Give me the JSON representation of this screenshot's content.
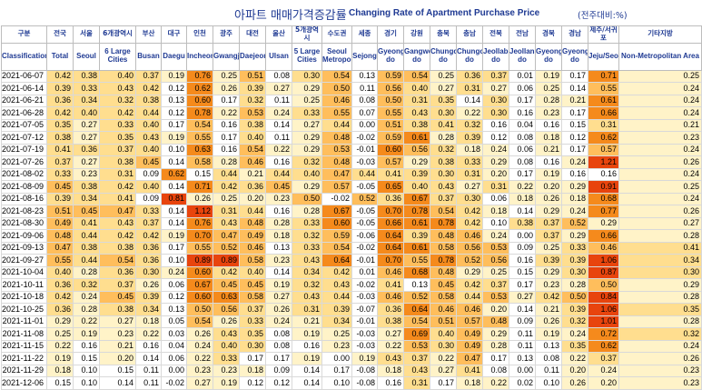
{
  "header": {
    "title_ko": "아파트 매매가격증감률",
    "title_en": "Changing Rate of Apartment Purchase Price",
    "unit": "(전주대비:%)"
  },
  "columns": [
    {
      "ko": "구분",
      "en": "Classification"
    },
    {
      "ko": "전국",
      "en": "Total"
    },
    {
      "ko": "서울",
      "en": "Seoul"
    },
    {
      "ko": "6개광역시",
      "en": "6 Large Cities"
    },
    {
      "ko": "부산",
      "en": "Busan"
    },
    {
      "ko": "대구",
      "en": "Daegu"
    },
    {
      "ko": "인천",
      "en": "Incheon"
    },
    {
      "ko": "광주",
      "en": "Gwangju"
    },
    {
      "ko": "대전",
      "en": "Daejeon"
    },
    {
      "ko": "울산",
      "en": "Ulsan"
    },
    {
      "ko": "5개광역시",
      "en": "5 Large Cities"
    },
    {
      "ko": "수도권",
      "en": "Seoul Metropolitan"
    },
    {
      "ko": "세종",
      "en": "Sejong"
    },
    {
      "ko": "경기",
      "en": "Gyeonggi-do"
    },
    {
      "ko": "강원",
      "en": "Gangwon-do"
    },
    {
      "ko": "충북",
      "en": "Chungcheongbuk-do"
    },
    {
      "ko": "충남",
      "en": "Chungcheongnam-do"
    },
    {
      "ko": "전북",
      "en": "Jeollabuk-do"
    },
    {
      "ko": "전남",
      "en": "Jeollanam-do"
    },
    {
      "ko": "경북",
      "en": "Gyeongsangbuk-do"
    },
    {
      "ko": "경남",
      "en": "Gyeongsangnam-do"
    },
    {
      "ko": "제주/서귀포",
      "en": "Jeju/Seogwipo"
    },
    {
      "ko": "기타지방",
      "en": "Non-Metropolitan Area"
    }
  ],
  "chart_data": {
    "type": "table",
    "title": "Changing Rate of Apartment Purchase Price",
    "row_labels": [
      "2021-06-07",
      "2021-06-14",
      "2021-06-21",
      "2021-06-28",
      "2021-07-05",
      "2021-07-12",
      "2021-07-19",
      "2021-07-26",
      "2021-08-02",
      "2021-08-09",
      "2021-08-16",
      "2021-08-23",
      "2021-08-30",
      "2021-09-06",
      "2021-09-13",
      "2021-09-27",
      "2021-10-04",
      "2021-10-11",
      "2021-10-18",
      "2021-10-25",
      "2021-11-01",
      "2021-11-08",
      "2021-11-15",
      "2021-11-22",
      "2021-11-29",
      "2021-12-06"
    ],
    "rows": [
      [
        "0.42",
        "0.38",
        "0.40",
        "0.37",
        "0.19",
        "0.76",
        "0.25",
        "0.51",
        "0.08",
        "0.30",
        "0.54",
        "0.13",
        "0.59",
        "0.54",
        "0.25",
        "0.36",
        "0.37",
        "0.01",
        "0.19",
        "0.17",
        "0.71",
        "0.25"
      ],
      [
        "0.39",
        "0.33",
        "0.43",
        "0.42",
        "0.12",
        "0.62",
        "0.26",
        "0.39",
        "0.27",
        "0.29",
        "0.50",
        "0.11",
        "0.56",
        "0.40",
        "0.27",
        "0.31",
        "0.27",
        "0.06",
        "0.25",
        "0.14",
        "0.55",
        "0.24"
      ],
      [
        "0.36",
        "0.34",
        "0.32",
        "0.38",
        "0.13",
        "0.60",
        "0.17",
        "0.32",
        "0.11",
        "0.25",
        "0.46",
        "0.08",
        "0.50",
        "0.31",
        "0.35",
        "0.14",
        "0.30",
        "0.17",
        "0.28",
        "0.21",
        "0.61",
        "0.24"
      ],
      [
        "0.42",
        "0.40",
        "0.42",
        "0.44",
        "0.12",
        "0.78",
        "0.22",
        "0.53",
        "0.24",
        "0.33",
        "0.55",
        "0.07",
        "0.55",
        "0.43",
        "0.30",
        "0.22",
        "0.30",
        "0.16",
        "0.23",
        "0.17",
        "0.66",
        "0.24"
      ],
      [
        "0.35",
        "0.27",
        "0.33",
        "0.40",
        "0.17",
        "0.54",
        "0.16",
        "0.38",
        "0.14",
        "0.27",
        "0.44",
        "0.00",
        "0.51",
        "0.38",
        "0.41",
        "0.32",
        "0.16",
        "0.04",
        "0.16",
        "0.15",
        "0.31",
        "0.21"
      ],
      [
        "0.38",
        "0.27",
        "0.35",
        "0.43",
        "0.19",
        "0.55",
        "0.17",
        "0.40",
        "0.11",
        "0.29",
        "0.48",
        "-0.02",
        "0.59",
        "0.61",
        "0.28",
        "0.39",
        "0.12",
        "0.08",
        "0.18",
        "0.12",
        "0.62",
        "0.23"
      ],
      [
        "0.41",
        "0.36",
        "0.37",
        "0.40",
        "0.10",
        "0.63",
        "0.16",
        "0.54",
        "0.22",
        "0.29",
        "0.53",
        "-0.01",
        "0.60",
        "0.56",
        "0.32",
        "0.18",
        "0.24",
        "0.06",
        "0.21",
        "0.17",
        "0.57",
        "0.24"
      ],
      [
        "0.37",
        "0.27",
        "0.38",
        "0.45",
        "0.14",
        "0.58",
        "0.28",
        "0.46",
        "0.16",
        "0.32",
        "0.48",
        "-0.03",
        "0.57",
        "0.29",
        "0.38",
        "0.33",
        "0.29",
        "0.08",
        "0.16",
        "0.24",
        "1.21",
        "0.26"
      ],
      [
        "0.33",
        "0.23",
        "0.31",
        "0.09",
        "0.62",
        "0.15",
        "0.44",
        "0.21",
        "0.44",
        "0.40",
        "0.47",
        "0.44",
        "0.41",
        "0.39",
        "0.30",
        "0.31",
        "0.20",
        "0.17",
        "0.19",
        "0.16",
        "0.16",
        "0.24"
      ],
      [
        "0.45",
        "0.38",
        "0.42",
        "0.40",
        "0.14",
        "0.71",
        "0.42",
        "0.36",
        "0.45",
        "0.29",
        "0.57",
        "-0.05",
        "0.65",
        "0.40",
        "0.43",
        "0.27",
        "0.31",
        "0.22",
        "0.20",
        "0.29",
        "0.91",
        "0.25"
      ],
      [
        "0.39",
        "0.34",
        "0.41",
        "0.09",
        "0.81",
        "0.26",
        "0.25",
        "0.20",
        "0.23",
        "0.50",
        "-0.02",
        "0.52",
        "0.36",
        "0.67",
        "0.37",
        "0.30",
        "0.06",
        "0.18",
        "0.26",
        "0.18",
        "0.68",
        "0.24"
      ],
      [
        "0.51",
        "0.45",
        "0.47",
        "0.33",
        "0.14",
        "1.12",
        "0.31",
        "0.44",
        "0.16",
        "0.28",
        "0.67",
        "-0.05",
        "0.70",
        "0.78",
        "0.54",
        "0.42",
        "0.18",
        "0.14",
        "0.29",
        "0.24",
        "0.77",
        "0.26"
      ],
      [
        "0.49",
        "0.41",
        "0.43",
        "0.37",
        "0.14",
        "0.76",
        "0.43",
        "0.48",
        "0.28",
        "0.33",
        "0.60",
        "-0.05",
        "0.66",
        "0.61",
        "0.78",
        "0.42",
        "0.10",
        "0.38",
        "0.37",
        "0.52",
        "0.29",
        "0.27"
      ],
      [
        "0.48",
        "0.44",
        "0.42",
        "0.42",
        "0.19",
        "0.70",
        "0.47",
        "0.49",
        "0.18",
        "0.32",
        "0.59",
        "-0.06",
        "0.64",
        "0.39",
        "0.48",
        "0.46",
        "0.24",
        "0.00",
        "0.37",
        "0.29",
        "0.66",
        "0.28"
      ],
      [
        "0.47",
        "0.38",
        "0.38",
        "0.36",
        "0.17",
        "0.55",
        "0.52",
        "0.46",
        "0.13",
        "0.33",
        "0.54",
        "-0.02",
        "0.64",
        "0.61",
        "0.58",
        "0.56",
        "0.53",
        "0.09",
        "0.25",
        "0.33",
        "0.46",
        "0.41"
      ],
      [
        "0.55",
        "0.44",
        "0.54",
        "0.36",
        "0.10",
        "0.89",
        "0.89",
        "0.58",
        "0.23",
        "0.43",
        "0.64",
        "-0.01",
        "0.70",
        "0.55",
        "0.78",
        "0.52",
        "0.56",
        "0.16",
        "0.39",
        "0.39",
        "1.06",
        "0.34"
      ],
      [
        "0.40",
        "0.28",
        "0.36",
        "0.30",
        "0.24",
        "0.60",
        "0.42",
        "0.40",
        "0.14",
        "0.34",
        "0.42",
        "0.01",
        "0.46",
        "0.68",
        "0.48",
        "0.29",
        "0.25",
        "0.15",
        "0.29",
        "0.30",
        "0.87",
        "0.30"
      ],
      [
        "0.36",
        "0.32",
        "0.37",
        "0.26",
        "0.06",
        "0.67",
        "0.45",
        "0.45",
        "0.19",
        "0.32",
        "0.43",
        "-0.02",
        "0.41",
        "0.13",
        "0.45",
        "0.42",
        "0.37",
        "0.17",
        "0.23",
        "0.28",
        "0.50",
        "0.29"
      ],
      [
        "0.42",
        "0.24",
        "0.45",
        "0.39",
        "0.12",
        "0.60",
        "0.63",
        "0.58",
        "0.27",
        "0.43",
        "0.44",
        "-0.03",
        "0.46",
        "0.52",
        "0.58",
        "0.44",
        "0.53",
        "0.27",
        "0.42",
        "0.50",
        "0.84",
        "0.28"
      ],
      [
        "0.36",
        "0.28",
        "0.38",
        "0.34",
        "0.13",
        "0.50",
        "0.56",
        "0.37",
        "0.26",
        "0.31",
        "0.39",
        "-0.07",
        "0.36",
        "0.64",
        "0.46",
        "0.46",
        "0.20",
        "0.14",
        "0.21",
        "0.39",
        "1.06",
        "0.35"
      ],
      [
        "0.29",
        "0.22",
        "0.27",
        "0.18",
        "0.05",
        "0.54",
        "0.26",
        "0.33",
        "0.24",
        "0.21",
        "0.34",
        "-0.01",
        "0.38",
        "0.54",
        "0.51",
        "0.57",
        "0.48",
        "0.09",
        "0.26",
        "0.32",
        "1.01",
        "0.28"
      ],
      [
        "0.25",
        "0.19",
        "0.23",
        "0.22",
        "0.03",
        "0.26",
        "0.43",
        "0.35",
        "0.08",
        "0.19",
        "0.25",
        "-0.03",
        "0.27",
        "0.69",
        "0.40",
        "0.49",
        "0.29",
        "0.11",
        "0.19",
        "0.24",
        "0.72",
        "0.32"
      ],
      [
        "0.22",
        "0.16",
        "0.21",
        "0.16",
        "0.04",
        "0.24",
        "0.40",
        "0.30",
        "0.08",
        "0.16",
        "0.23",
        "-0.03",
        "0.22",
        "0.53",
        "0.30",
        "0.49",
        "0.28",
        "0.11",
        "0.13",
        "0.35",
        "0.62",
        "0.24"
      ],
      [
        "0.19",
        "0.15",
        "0.20",
        "0.14",
        "0.06",
        "0.22",
        "0.33",
        "0.17",
        "0.17",
        "0.19",
        "0.00",
        "0.19",
        "0.43",
        "0.37",
        "0.22",
        "0.47",
        "0.17",
        "0.13",
        "0.08",
        "0.22",
        "0.37",
        "0.26"
      ],
      [
        "0.18",
        "0.10",
        "0.15",
        "0.11",
        "0.00",
        "0.23",
        "0.23",
        "0.18",
        "0.09",
        "0.14",
        "0.17",
        "-0.08",
        "0.18",
        "0.43",
        "0.27",
        "0.41",
        "0.08",
        "0.00",
        "0.11",
        "0.20",
        "0.24",
        "0.23"
      ],
      [
        "0.15",
        "0.10",
        "0.14",
        "0.11",
        "-0.02",
        "0.27",
        "0.19",
        "0.12",
        "0.12",
        "0.14",
        "0.10",
        "-0.08",
        "0.16",
        "0.31",
        "0.17",
        "0.18",
        "0.22",
        "0.02",
        "0.10",
        "0.26",
        "0.20",
        "0.23"
      ]
    ],
    "color_scale": {
      "low": "#ffffff",
      "mid": "#ffde8f",
      "high": "#f58a1c",
      "max": "#e8440d"
    }
  }
}
